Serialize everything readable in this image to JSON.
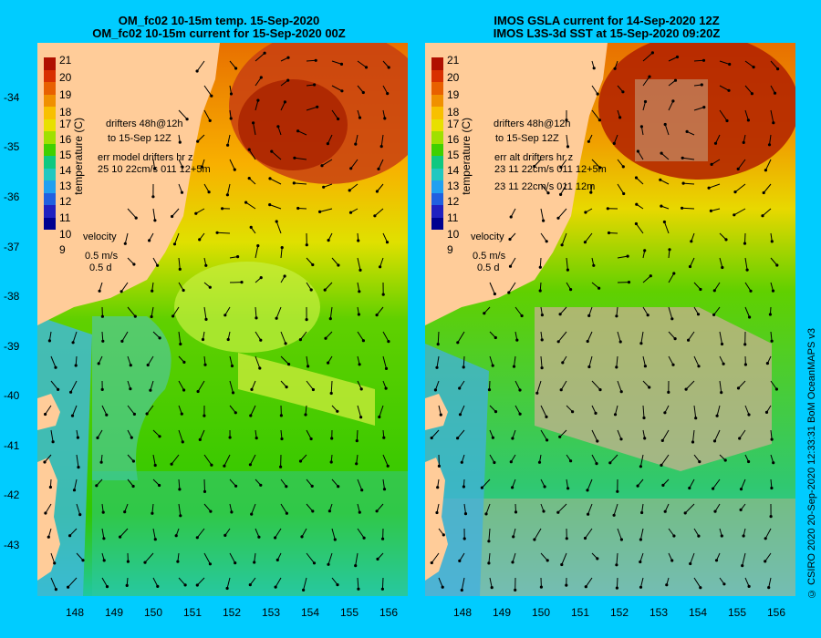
{
  "left": {
    "title_line1": "OM_fc02 10-15m temp. 15-Sep-2020",
    "title_line2": "OM_fc02 10-15m current for 15-Sep-2020 00Z",
    "legend": {
      "drifters": "drifters 48h@12h",
      "to": "to 15-Sep 12Z",
      "err": "err model drifters hr z",
      "err_values": "25 10 22cm/s 011 12+5m"
    },
    "colorbar_label": "temperature (C)"
  },
  "right": {
    "title_line1": "IMOS GSLA current for 14-Sep-2020 12Z",
    "title_line2": "IMOS L3S-3d SST at 15-Sep-2020 09:20Z",
    "legend": {
      "drifters": "drifters 48h@12h",
      "to": "to 15-Sep 12Z",
      "err": "err alt drifters hr z",
      "err_values": "23 11 22cm/s 011 12+5m",
      "err_values2": "23 11 22cm/s 011 12m"
    },
    "colorbar_label": "temperature (C)"
  },
  "velocity": {
    "label": "velocity",
    "speed": "0.5 m/s",
    "days": "0.5 d"
  },
  "colorbar_ticks": [
    "21",
    "20",
    "19",
    "18",
    "17",
    "16",
    "15",
    "14",
    "13",
    "12",
    "11",
    "10",
    "9"
  ],
  "latitude_ticks": [
    "-34",
    "-35",
    "-36",
    "-37",
    "-38",
    "-39",
    "-40",
    "-41",
    "-42",
    "-43"
  ],
  "longitude_ticks": [
    "148",
    "149",
    "150",
    "151",
    "152",
    "153",
    "154",
    "155",
    "156"
  ],
  "credit": "© CSIRO 2020   20-Sep-2020 12:33:31 BoM OceanMAPS v3",
  "colors": {
    "background": "#00ccff",
    "land": "#ffcc99",
    "cloud": "#c8b090",
    "colorbar": [
      "#b01000",
      "#d83000",
      "#e86000",
      "#f09000",
      "#f8c000",
      "#e8e000",
      "#a0e000",
      "#40d000",
      "#10c880",
      "#20c8c0",
      "#20a0f0",
      "#2060e0",
      "#2020c0",
      "#000090"
    ]
  }
}
